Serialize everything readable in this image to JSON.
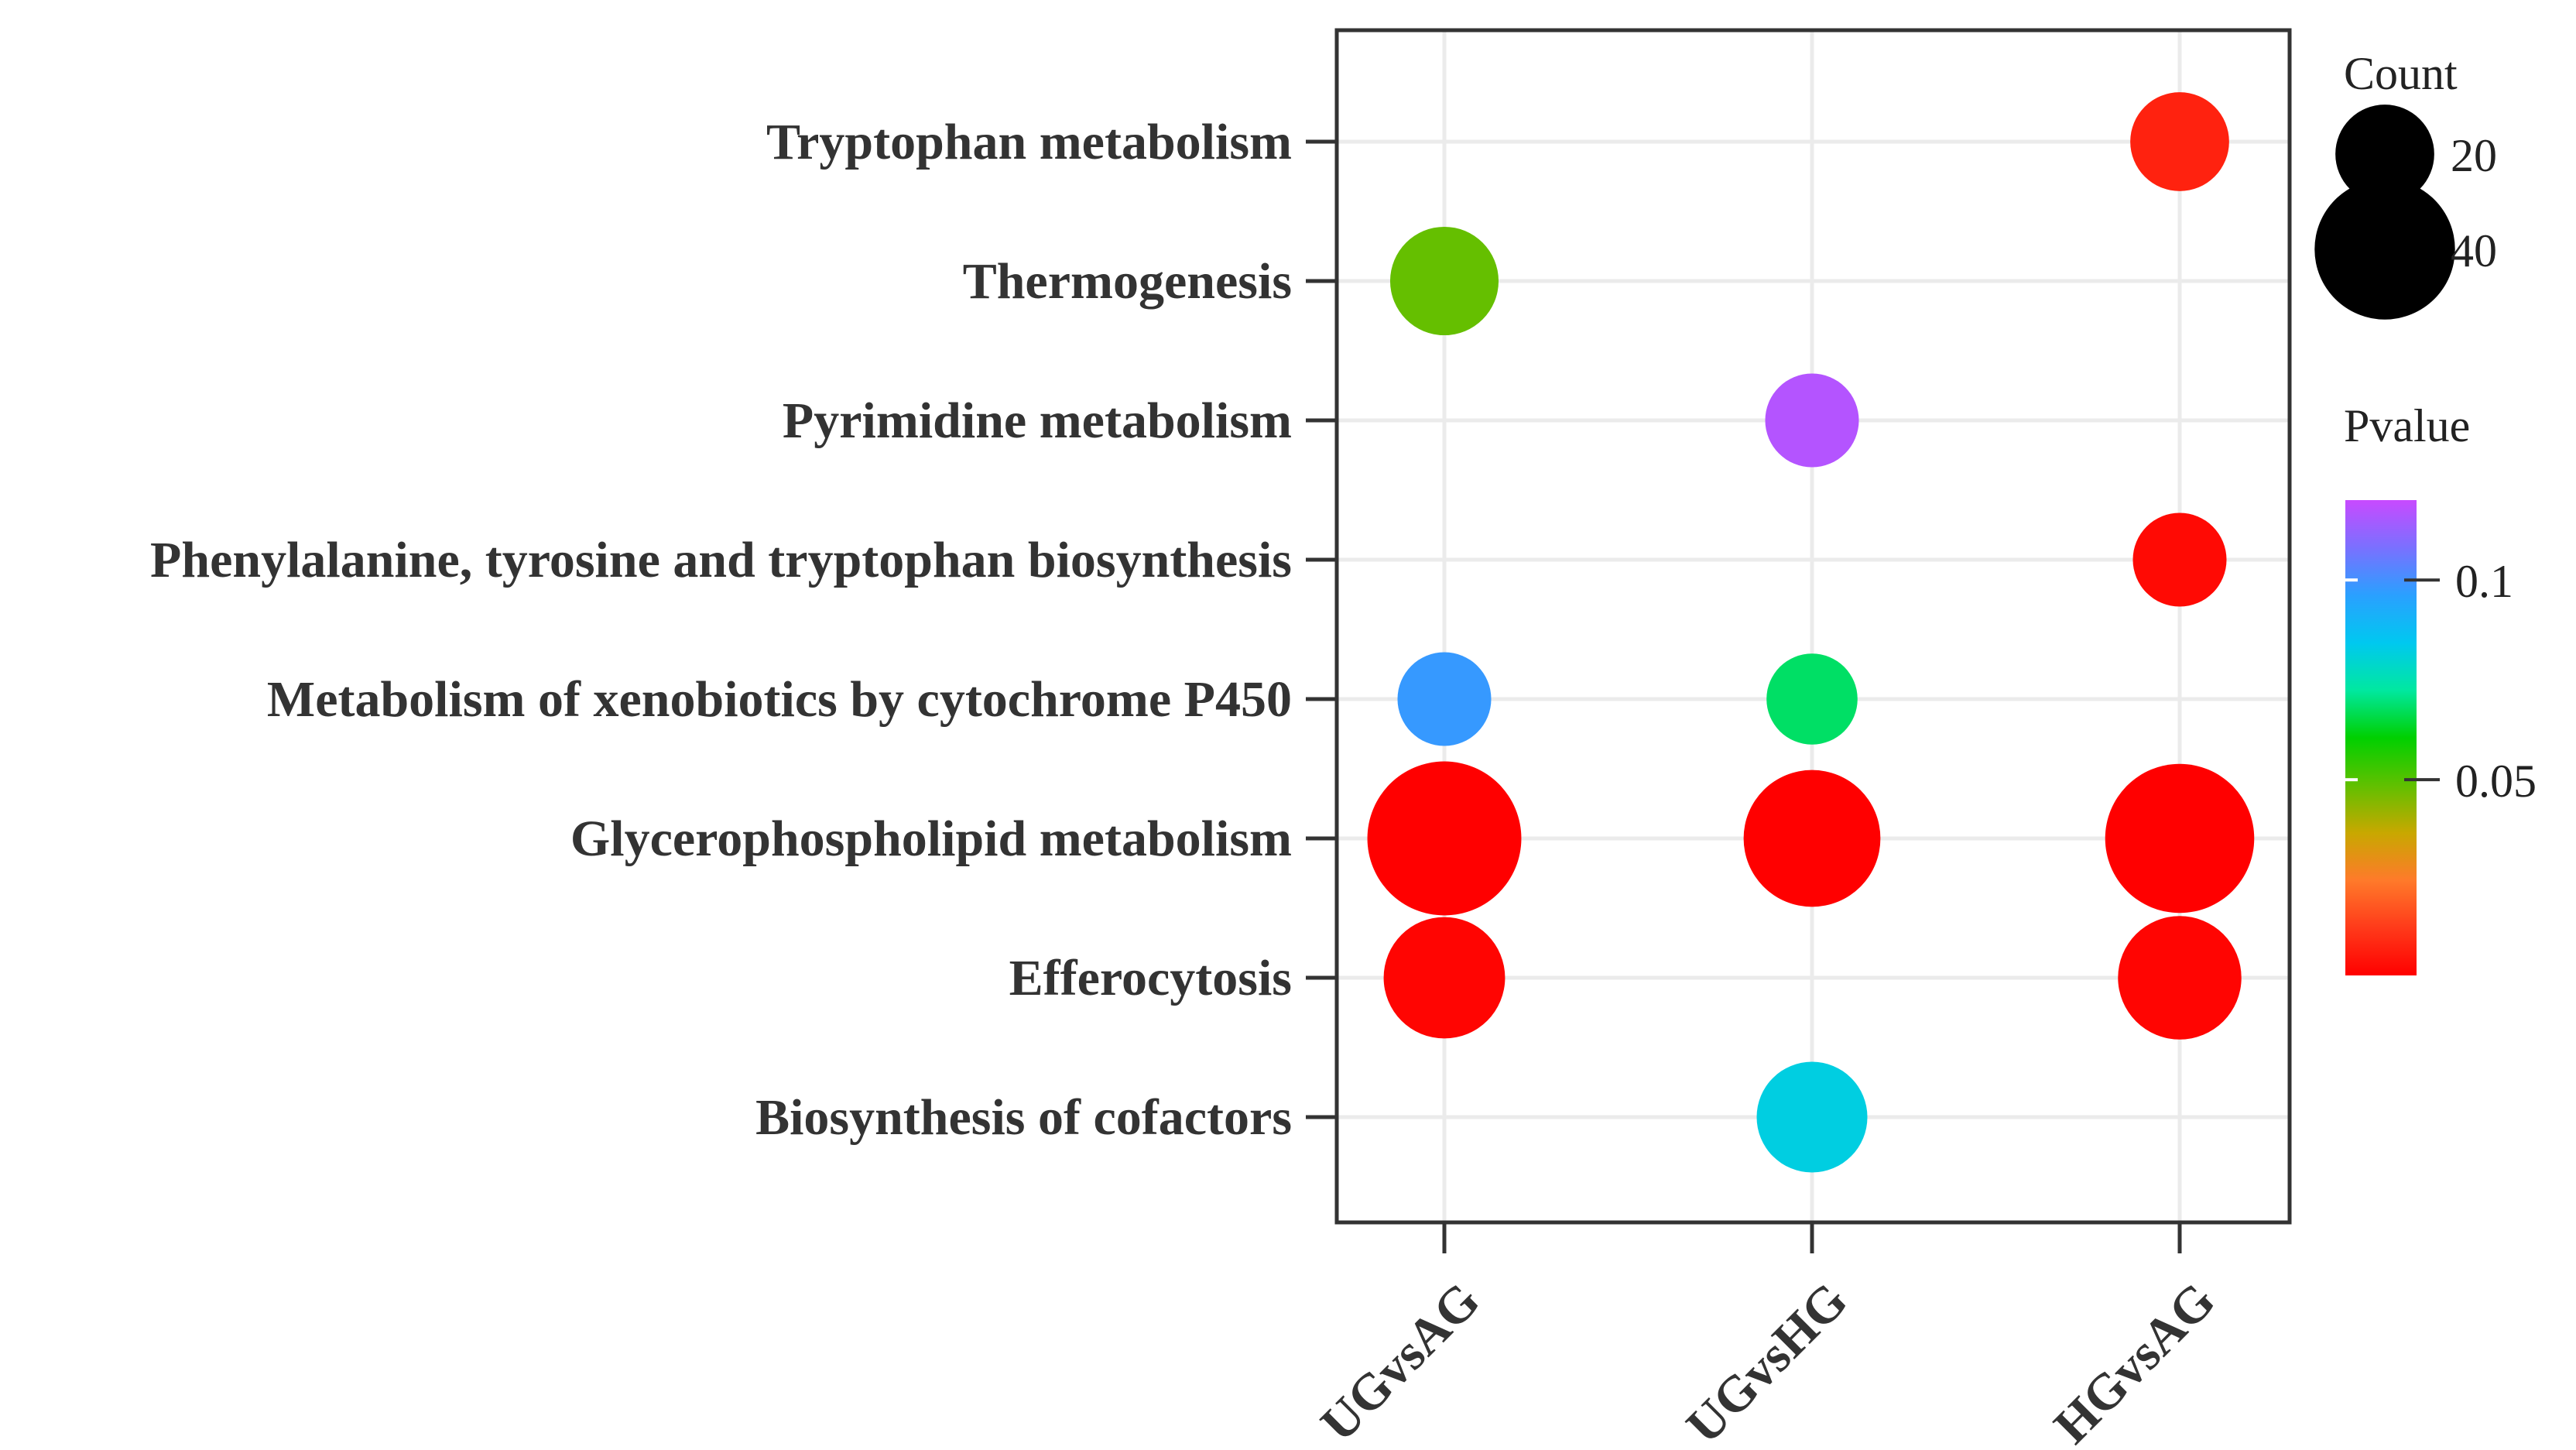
{
  "chart_data": {
    "type": "scatter",
    "subtype": "bubble",
    "categories_x": [
      "UGvsAG",
      "UGvsHG",
      "HGvsAG"
    ],
    "categories_y": [
      "Biosynthesis of cofactors",
      "Efferocytosis",
      "Glycerophospholipid metabolism",
      "Metabolism of xenobiotics by cytochrome P450",
      "Phenylalanine, tyrosine and tryptophan biosynthesis",
      "Pyrimidine metabolism",
      "Thermogenesis",
      "Tryptophan metabolism"
    ],
    "points": [
      {
        "x": "HGvsAG",
        "y": "Tryptophan metabolism",
        "count": 20,
        "pvalue": 0.008
      },
      {
        "x": "UGvsAG",
        "y": "Thermogenesis",
        "count": 24,
        "pvalue": 0.048
      },
      {
        "x": "UGvsHG",
        "y": "Pyrimidine metabolism",
        "count": 18,
        "pvalue": 0.117
      },
      {
        "x": "HGvsAG",
        "y": "Phenylalanine, tyrosine and tryptophan biosynthesis",
        "count": 18,
        "pvalue": 0.003
      },
      {
        "x": "UGvsAG",
        "y": "Metabolism of xenobiotics by cytochrome P450",
        "count": 18,
        "pvalue": 0.098
      },
      {
        "x": "UGvsHG",
        "y": "Metabolism of xenobiotics by cytochrome P450",
        "count": 17,
        "pvalue": 0.068
      },
      {
        "x": "UGvsAG",
        "y": "Glycerophospholipid metabolism",
        "count": 48,
        "pvalue": 0.001
      },
      {
        "x": "UGvsHG",
        "y": "Glycerophospholipid metabolism",
        "count": 38,
        "pvalue": 0.001
      },
      {
        "x": "HGvsAG",
        "y": "Glycerophospholipid metabolism",
        "count": 45,
        "pvalue": 0.001
      },
      {
        "x": "UGvsAG",
        "y": "Efferocytosis",
        "count": 30,
        "pvalue": 0.002
      },
      {
        "x": "HGvsAG",
        "y": "Efferocytosis",
        "count": 31,
        "pvalue": 0.002
      },
      {
        "x": "UGvsHG",
        "y": "Biosynthesis of cofactors",
        "count": 25,
        "pvalue": 0.082
      }
    ],
    "size_legend": {
      "title": "Count",
      "values": [
        20,
        40
      ]
    },
    "color_legend": {
      "title": "Pvalue",
      "min": 0.001,
      "max": 0.12,
      "ticks": [
        0.1,
        0.05
      ],
      "tick_labels": [
        "0.1",
        "0.05"
      ],
      "gradient_stops": [
        "#ff0000",
        "#ff3a1a",
        "#ff7a2a",
        "#c8a800",
        "#60c000",
        "#00d000",
        "#00e8a0",
        "#00c8f0",
        "#2aa0ff",
        "#7a70ff",
        "#c84aff"
      ]
    },
    "grid": true,
    "legend_position": "right",
    "xlabel": "",
    "ylabel": "",
    "title": ""
  }
}
